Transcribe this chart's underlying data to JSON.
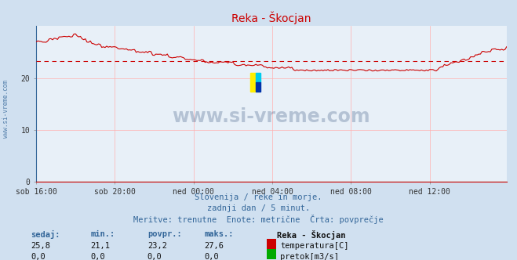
{
  "title": "Reka - Škocjan",
  "title_color": "#cc0000",
  "bg_color": "#d0e0f0",
  "plot_bg_color": "#e8f0f8",
  "grid_color_minor": "#d8e8f8",
  "grid_color_major": "#ffb0b0",
  "ylim": [
    0,
    30
  ],
  "yticks": [
    0,
    10,
    20
  ],
  "xlabel_ticks": [
    "sob 16:00",
    "sob 20:00",
    "ned 00:00",
    "ned 04:00",
    "ned 08:00",
    "ned 12:00"
  ],
  "avg_value": 23.2,
  "avg_line_color": "#cc0000",
  "temp_line_color": "#cc0000",
  "flow_line_color": "#007700",
  "watermark_text": "www.si-vreme.com",
  "watermark_color": "#1a3a6a",
  "watermark_alpha": 0.25,
  "footer_line1": "Slovenija / reke in morje.",
  "footer_line2": "zadnji dan / 5 minut.",
  "footer_line3": "Meritve: trenutne  Enote: metrične  Črta: povprečje",
  "footer_color": "#336699",
  "table_headers": [
    "sedaj:",
    "min.:",
    "povpr.:",
    "maks.:"
  ],
  "table_header_color": "#336699",
  "station_name": "Reka - Škocjan",
  "row1_values": [
    "25,8",
    "21,1",
    "23,2",
    "27,6"
  ],
  "row1_label": "temperatura[C]",
  "row1_color": "#cc0000",
  "row2_values": [
    "0,0",
    "0,0",
    "0,0",
    "0,0"
  ],
  "row2_label": "pretok[m3/s]",
  "row2_color": "#00aa00",
  "sidebar_text": "www.si-vreme.com",
  "sidebar_color": "#336699",
  "n_points": 288,
  "tick_positions": [
    0,
    48,
    96,
    144,
    192,
    240
  ]
}
